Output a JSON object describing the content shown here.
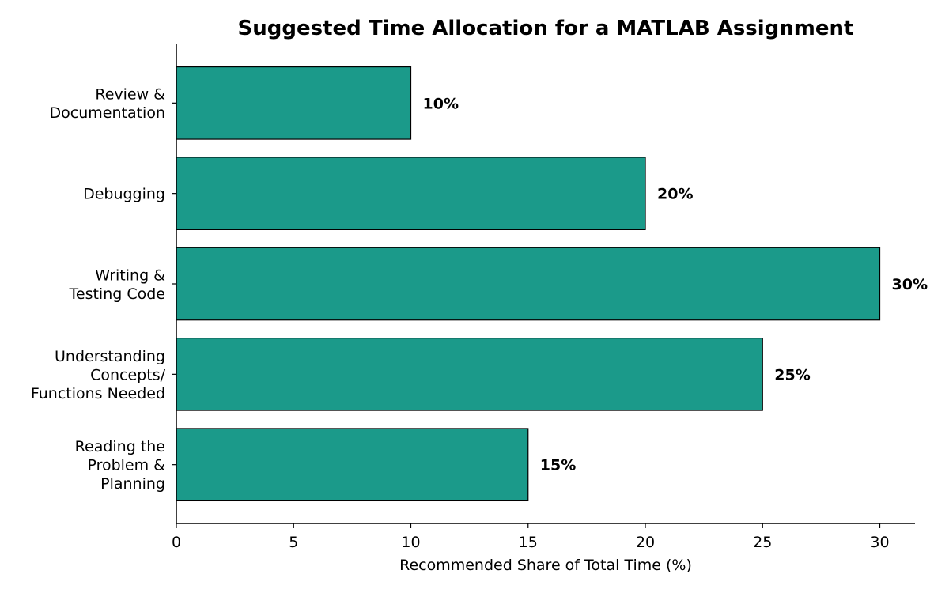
{
  "chart_data": {
    "type": "bar",
    "orientation": "horizontal",
    "title": "Suggested Time Allocation for a MATLAB Assignment",
    "xlabel": "Recommended Share of Total Time (%)",
    "ylabel": "",
    "xlim": [
      0,
      31.5
    ],
    "xticks": [
      0,
      5,
      10,
      15,
      20,
      25,
      30
    ],
    "categories": [
      [
        "Reading the",
        "Problem &",
        "Planning"
      ],
      [
        "Understanding",
        "Concepts/",
        "Functions Needed"
      ],
      [
        "Writing &",
        "Testing Code"
      ],
      [
        "Debugging"
      ],
      [
        "Review &",
        "Documentation"
      ]
    ],
    "values": [
      15,
      25,
      30,
      20,
      10
    ],
    "data_labels": [
      "15%",
      "25%",
      "30%",
      "20%",
      "10%"
    ],
    "bar_color": "#1b9a8a",
    "edge_color": "#000000",
    "grid": false,
    "legend": "none"
  }
}
